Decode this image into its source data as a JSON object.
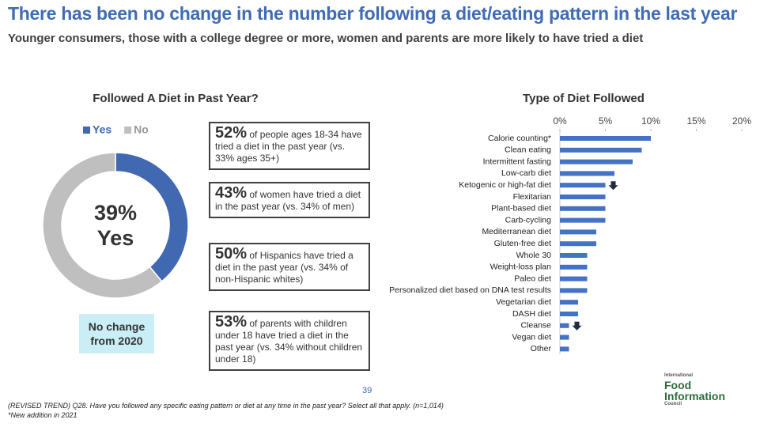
{
  "header": {
    "title": "There has been no change in the number following a diet/eating pattern in the last year",
    "subtitle": "Younger consumers, those with a college degree or more, women and parents are more likely to have tried a diet"
  },
  "chart_data": [
    {
      "type": "donut",
      "title": "Followed A Diet in Past Year?",
      "categories": [
        "Yes",
        "No"
      ],
      "values": [
        39,
        61
      ],
      "colors": [
        "#4169b2",
        "#bfbfbf"
      ],
      "center_label": "39%",
      "center_sublabel": "Yes",
      "legend": "top"
    },
    {
      "type": "hbar",
      "title": "Type of Diet Followed",
      "categories": [
        "Calorie counting*",
        "Clean eating",
        "Intermittent fasting",
        "Low-carb diet",
        "Ketogenic or high-fat diet",
        "Flexitarian",
        "Plant-based diet",
        "Carb-cycling",
        "Mediterranean diet",
        "Gluten-free diet",
        "Whole 30",
        "Weight-loss plan",
        "Paleo diet",
        "Personalized diet based on DNA test results",
        "Vegetarian diet",
        "DASH diet",
        "Cleanse",
        "Vegan diet",
        "Other"
      ],
      "values": [
        10,
        9,
        8,
        6,
        5,
        5,
        5,
        5,
        4,
        4,
        3,
        3,
        3,
        3,
        2,
        2,
        1,
        1,
        1
      ],
      "down_arrow": [
        false,
        false,
        false,
        false,
        true,
        false,
        false,
        false,
        false,
        false,
        false,
        false,
        false,
        false,
        false,
        false,
        true,
        false,
        false
      ],
      "color": "#4472c4",
      "xlim": [
        0,
        20
      ],
      "xticks": [
        {
          "value": 0,
          "label": "0%"
        },
        {
          "value": 5,
          "label": "5%"
        },
        {
          "value": 10,
          "label": "10%"
        },
        {
          "value": 15,
          "label": "15%"
        },
        {
          "value": 20,
          "label": "20%"
        }
      ],
      "grid": false
    }
  ],
  "callouts": [
    {
      "stat": "52%",
      "text": "of people ages 18-34 have tried a diet in the past year (vs. 33% ages 35+)"
    },
    {
      "stat": "43%",
      "text": "of women have tried a diet in the past year (vs. 34% of men)"
    },
    {
      "stat": "50%",
      "text": "of Hispanics have tried a diet in the past year (vs. 34% of non-Hispanic whites)"
    },
    {
      "stat": "53%",
      "text": "of parents with children under 18 have tried a diet in the past year (vs. 34% without children under 18)"
    }
  ],
  "note_box": "No change from 2020",
  "footer": {
    "page": "39",
    "notes": [
      "(REVISED TREND) Q28. Have you followed any specific eating pattern or diet at any time in the past year? Select all that apply. (n=1,014)",
      "*New addition in 2021"
    ],
    "logo": {
      "line1": "International",
      "line2": "Food",
      "line3": "Information",
      "line4": "Council"
    }
  }
}
